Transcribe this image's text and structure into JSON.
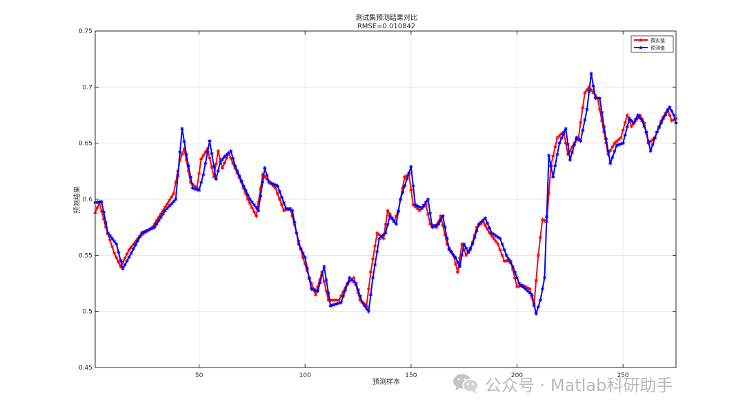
{
  "chart_data": {
    "type": "line",
    "title": "测试集预测结果对比",
    "subtitle": "RMSE=0.010842",
    "xlabel": "预测样本",
    "ylabel": "预测结果",
    "xlim": [
      1,
      275
    ],
    "ylim": [
      0.45,
      0.75
    ],
    "xticks": [
      50,
      100,
      150,
      200,
      250
    ],
    "yticks": [
      0.45,
      0.5,
      0.55,
      0.6,
      0.65,
      0.7,
      0.75
    ],
    "xtick_labels": [
      "50",
      "100",
      "150",
      "200",
      "250"
    ],
    "ytick_labels": [
      "0.45",
      "0.5",
      "0.55",
      "0.6",
      "0.65",
      "0.7",
      "0.75"
    ],
    "grid": true,
    "legend_position": "top-right",
    "series": [
      {
        "name": "真实值",
        "color": "#ff0000",
        "marker": "star",
        "anchors": [
          [
            1,
            0.588
          ],
          [
            3,
            0.597
          ],
          [
            6,
            0.575
          ],
          [
            10,
            0.552
          ],
          [
            13,
            0.54
          ],
          [
            17,
            0.555
          ],
          [
            22,
            0.567
          ],
          [
            28,
            0.575
          ],
          [
            33,
            0.59
          ],
          [
            38,
            0.605
          ],
          [
            41,
            0.635
          ],
          [
            43,
            0.645
          ],
          [
            46,
            0.615
          ],
          [
            49,
            0.61
          ],
          [
            51,
            0.636
          ],
          [
            54,
            0.645
          ],
          [
            57,
            0.62
          ],
          [
            59,
            0.643
          ],
          [
            61,
            0.628
          ],
          [
            64,
            0.641
          ],
          [
            66,
            0.632
          ],
          [
            70,
            0.615
          ],
          [
            73,
            0.6
          ],
          [
            77,
            0.585
          ],
          [
            80,
            0.622
          ],
          [
            82,
            0.618
          ],
          [
            86,
            0.61
          ],
          [
            90,
            0.59
          ],
          [
            93,
            0.592
          ],
          [
            96,
            0.57
          ],
          [
            99,
            0.548
          ],
          [
            102,
            0.53
          ],
          [
            105,
            0.515
          ],
          [
            108,
            0.535
          ],
          [
            111,
            0.51
          ],
          [
            116,
            0.51
          ],
          [
            120,
            0.525
          ],
          [
            123,
            0.53
          ],
          [
            126,
            0.51
          ],
          [
            129,
            0.505
          ],
          [
            131,
            0.535
          ],
          [
            134,
            0.57
          ],
          [
            137,
            0.565
          ],
          [
            139,
            0.59
          ],
          [
            142,
            0.58
          ],
          [
            144,
            0.59
          ],
          [
            147,
            0.62
          ],
          [
            149,
            0.622
          ],
          [
            151,
            0.595
          ],
          [
            154,
            0.59
          ],
          [
            157,
            0.595
          ],
          [
            159,
            0.578
          ],
          [
            162,
            0.575
          ],
          [
            164,
            0.585
          ],
          [
            167,
            0.56
          ],
          [
            170,
            0.55
          ],
          [
            172,
            0.535
          ],
          [
            174,
            0.56
          ],
          [
            176,
            0.55
          ],
          [
            178,
            0.555
          ],
          [
            181,
            0.575
          ],
          [
            184,
            0.58
          ],
          [
            187,
            0.57
          ],
          [
            191,
            0.56
          ],
          [
            194,
            0.545
          ],
          [
            197,
            0.545
          ],
          [
            200,
            0.522
          ],
          [
            203,
            0.523
          ],
          [
            206,
            0.52
          ],
          [
            208,
            0.505
          ],
          [
            210,
            0.55
          ],
          [
            212,
            0.582
          ],
          [
            214,
            0.58
          ],
          [
            216,
            0.63
          ],
          [
            219,
            0.655
          ],
          [
            222,
            0.66
          ],
          [
            224,
            0.64
          ],
          [
            227,
            0.65
          ],
          [
            229,
            0.655
          ],
          [
            232,
            0.695
          ],
          [
            234,
            0.7
          ],
          [
            236,
            0.695
          ],
          [
            238,
            0.69
          ],
          [
            240,
            0.67
          ],
          [
            243,
            0.64
          ],
          [
            246,
            0.65
          ],
          [
            249,
            0.655
          ],
          [
            252,
            0.675
          ],
          [
            254,
            0.665
          ],
          [
            256,
            0.67
          ],
          [
            258,
            0.675
          ],
          [
            260,
            0.668
          ],
          [
            262,
            0.65
          ],
          [
            265,
            0.655
          ],
          [
            268,
            0.67
          ],
          [
            271,
            0.68
          ],
          [
            273,
            0.67
          ],
          [
            275,
            0.672
          ]
        ]
      },
      {
        "name": "预测值",
        "color": "#0000ff",
        "marker": "star",
        "anchors": [
          [
            1,
            0.597
          ],
          [
            4,
            0.598
          ],
          [
            7,
            0.57
          ],
          [
            11,
            0.56
          ],
          [
            14,
            0.538
          ],
          [
            18,
            0.552
          ],
          [
            23,
            0.57
          ],
          [
            29,
            0.575
          ],
          [
            34,
            0.59
          ],
          [
            39,
            0.6
          ],
          [
            42,
            0.663
          ],
          [
            44,
            0.64
          ],
          [
            47,
            0.61
          ],
          [
            50,
            0.608
          ],
          [
            52,
            0.622
          ],
          [
            55,
            0.652
          ],
          [
            58,
            0.618
          ],
          [
            60,
            0.633
          ],
          [
            62,
            0.638
          ],
          [
            65,
            0.643
          ],
          [
            67,
            0.63
          ],
          [
            71,
            0.612
          ],
          [
            74,
            0.6
          ],
          [
            78,
            0.59
          ],
          [
            81,
            0.628
          ],
          [
            83,
            0.615
          ],
          [
            87,
            0.612
          ],
          [
            91,
            0.592
          ],
          [
            94,
            0.59
          ],
          [
            97,
            0.56
          ],
          [
            100,
            0.548
          ],
          [
            103,
            0.52
          ],
          [
            106,
            0.518
          ],
          [
            109,
            0.54
          ],
          [
            112,
            0.505
          ],
          [
            117,
            0.508
          ],
          [
            121,
            0.53
          ],
          [
            124,
            0.525
          ],
          [
            127,
            0.508
          ],
          [
            130,
            0.5
          ],
          [
            132,
            0.53
          ],
          [
            135,
            0.565
          ],
          [
            138,
            0.57
          ],
          [
            140,
            0.585
          ],
          [
            143,
            0.578
          ],
          [
            145,
            0.6
          ],
          [
            148,
            0.618
          ],
          [
            150,
            0.629
          ],
          [
            152,
            0.595
          ],
          [
            155,
            0.592
          ],
          [
            158,
            0.6
          ],
          [
            160,
            0.575
          ],
          [
            163,
            0.578
          ],
          [
            165,
            0.585
          ],
          [
            168,
            0.555
          ],
          [
            171,
            0.548
          ],
          [
            173,
            0.54
          ],
          [
            175,
            0.56
          ],
          [
            177,
            0.553
          ],
          [
            179,
            0.56
          ],
          [
            182,
            0.578
          ],
          [
            185,
            0.583
          ],
          [
            188,
            0.57
          ],
          [
            192,
            0.565
          ],
          [
            195,
            0.55
          ],
          [
            198,
            0.54
          ],
          [
            201,
            0.525
          ],
          [
            204,
            0.52
          ],
          [
            207,
            0.515
          ],
          [
            209,
            0.498
          ],
          [
            211,
            0.51
          ],
          [
            213,
            0.53
          ],
          [
            215,
            0.639
          ],
          [
            217,
            0.62
          ],
          [
            220,
            0.65
          ],
          [
            223,
            0.663
          ],
          [
            225,
            0.635
          ],
          [
            228,
            0.655
          ],
          [
            230,
            0.652
          ],
          [
            233,
            0.68
          ],
          [
            235,
            0.712
          ],
          [
            237,
            0.69
          ],
          [
            239,
            0.69
          ],
          [
            241,
            0.665
          ],
          [
            244,
            0.632
          ],
          [
            247,
            0.648
          ],
          [
            250,
            0.65
          ],
          [
            253,
            0.672
          ],
          [
            255,
            0.668
          ],
          [
            257,
            0.675
          ],
          [
            259,
            0.67
          ],
          [
            261,
            0.66
          ],
          [
            263,
            0.643
          ],
          [
            266,
            0.66
          ],
          [
            269,
            0.672
          ],
          [
            272,
            0.682
          ],
          [
            274,
            0.675
          ],
          [
            275,
            0.668
          ]
        ]
      }
    ]
  },
  "watermark": {
    "icon": "wechat-icon",
    "text": "公众号 · Matlab科研助手"
  }
}
